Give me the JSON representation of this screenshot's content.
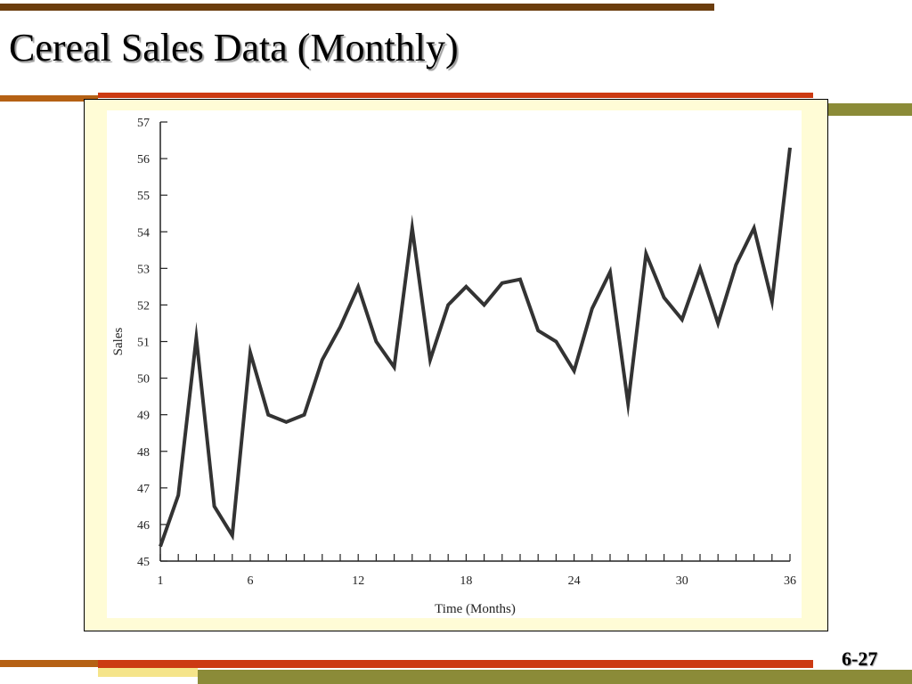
{
  "slide": {
    "title": "Cereal Sales Data (Monthly)",
    "number": "6-27"
  },
  "colors": {
    "top_stripe": "#6b3d0d",
    "accent_red": "#cc3a12",
    "accent_brown": "#b56114",
    "accent_olive": "#8b8b38",
    "accent_yellow": "#f5e48a",
    "chart_frame_bg": "#fffcd6",
    "line": "#333333"
  },
  "chart_data": {
    "type": "line",
    "xlabel": "Time (Months)",
    "ylabel": "Sales",
    "xlim": [
      1,
      36
    ],
    "ylim": [
      45,
      57
    ],
    "x_ticks": [
      1,
      6,
      12,
      18,
      24,
      30,
      36
    ],
    "y_ticks": [
      45,
      46,
      47,
      48,
      49,
      50,
      51,
      52,
      53,
      54,
      55,
      56,
      57
    ],
    "grid": false,
    "x": [
      1,
      2,
      3,
      4,
      5,
      6,
      7,
      8,
      9,
      10,
      11,
      12,
      13,
      14,
      15,
      16,
      17,
      18,
      19,
      20,
      21,
      22,
      23,
      24,
      25,
      26,
      27,
      28,
      29,
      30,
      31,
      32,
      33,
      34,
      35,
      36
    ],
    "series": [
      {
        "values": [
          45.4,
          46.8,
          51.1,
          46.5,
          45.7,
          50.7,
          49.0,
          48.8,
          49.0,
          50.5,
          51.4,
          52.5,
          51.0,
          50.3,
          54.1,
          50.5,
          52.0,
          52.5,
          52.0,
          52.6,
          52.7,
          51.3,
          51.0,
          50.2,
          51.9,
          52.9,
          49.3,
          53.4,
          52.2,
          51.6,
          53.0,
          51.5,
          53.1,
          54.1,
          52.1,
          56.3
        ]
      }
    ]
  }
}
